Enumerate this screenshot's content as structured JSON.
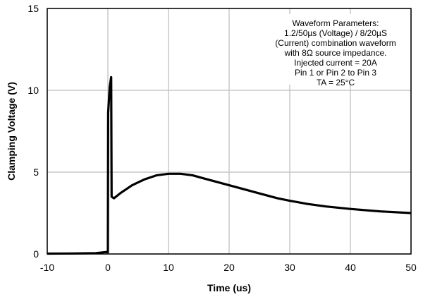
{
  "chart_data": {
    "type": "line",
    "title": "",
    "xlabel": "Time (us)",
    "ylabel": "Clamping Voltage (V)",
    "xlim": [
      -10,
      50
    ],
    "ylim": [
      0,
      15
    ],
    "xticks": [
      -10,
      0,
      10,
      20,
      30,
      40,
      50
    ],
    "yticks": [
      0,
      5,
      10,
      15
    ],
    "grid": true,
    "line_color": "#000000",
    "grid_color": "#c8c8c8",
    "annotation": [
      "Waveform Parameters:",
      "1.2/50µs (Voltage) / 8/20µS",
      "(Current) combination waveform",
      "with 8Ω source impedance.",
      "Injected current = 20A",
      "Pin 1 or Pin 2 to Pin 3",
      "TA = 25°C"
    ],
    "series": [
      {
        "name": "Clamping Voltage",
        "x": [
          -10,
          -6,
          -2,
          -0.2,
          0,
          0.05,
          0.3,
          0.55,
          0.62,
          1,
          2,
          4,
          6,
          8,
          10,
          12,
          14,
          16,
          18,
          20,
          22,
          25,
          28,
          30,
          33,
          36,
          40,
          45,
          50
        ],
        "y": [
          0.02,
          0.03,
          0.05,
          0.12,
          0.1,
          8.6,
          10.2,
          10.8,
          3.5,
          3.4,
          3.7,
          4.2,
          4.55,
          4.8,
          4.9,
          4.9,
          4.8,
          4.6,
          4.4,
          4.2,
          4.0,
          3.7,
          3.4,
          3.25,
          3.05,
          2.9,
          2.75,
          2.6,
          2.5
        ]
      }
    ]
  }
}
